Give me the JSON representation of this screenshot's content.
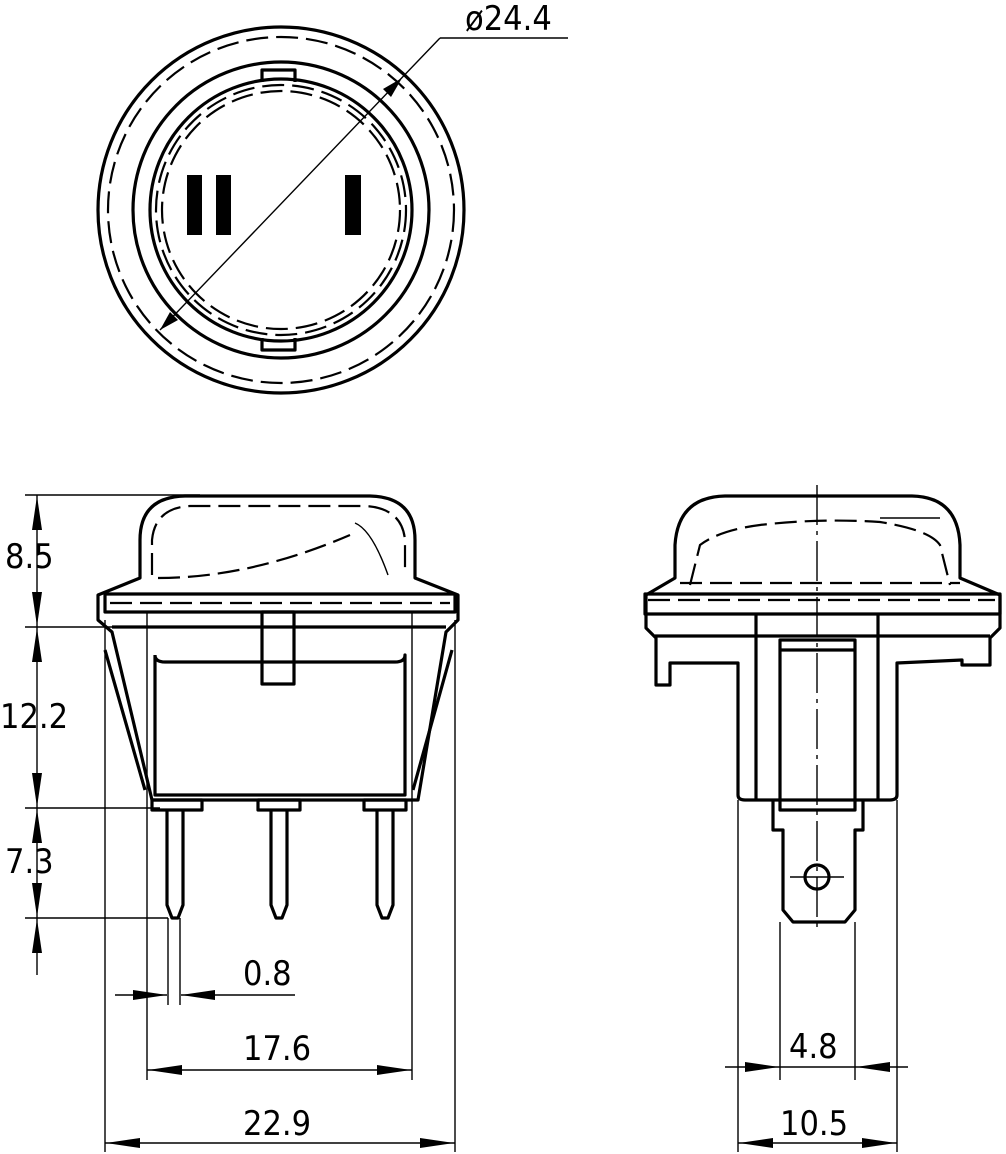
{
  "top_view": {
    "diameter_label": "ø24.4",
    "marking_off": "II",
    "marking_on": "I"
  },
  "front_view": {
    "dim_cap_height": "8.5",
    "dim_body_height": "12.2",
    "dim_pin_length": "7.3",
    "dim_pin_thickness": "0.8",
    "dim_body_width": "17.6",
    "dim_flange_width": "22.9"
  },
  "side_view": {
    "dim_tab_width": "4.8",
    "dim_body_depth": "10.5"
  }
}
